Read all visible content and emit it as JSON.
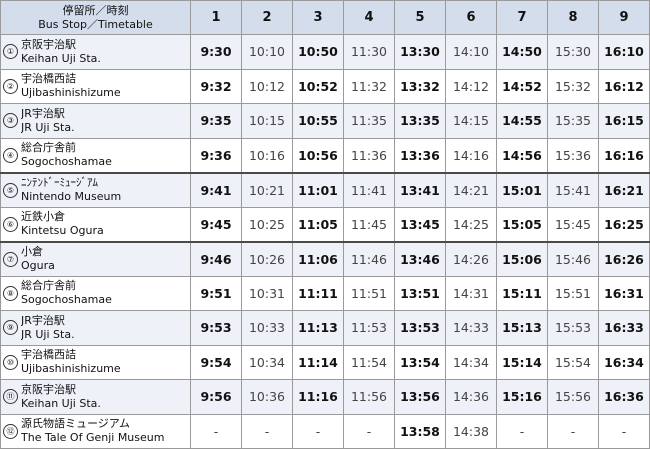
{
  "header": {
    "stop_label_ja": "停留所／時刻",
    "stop_label_en": "Bus Stop／Timetable",
    "trips": [
      "1",
      "2",
      "3",
      "4",
      "5",
      "6",
      "7",
      "8",
      "9"
    ]
  },
  "stops": [
    {
      "num": "①",
      "ja": "京阪宇治駅",
      "en": "Keihan Uji Sta.",
      "times": [
        "9:30",
        "10:10",
        "10:50",
        "11:30",
        "13:30",
        "14:10",
        "14:50",
        "15:30",
        "16:10"
      ]
    },
    {
      "num": "②",
      "ja": "宇治橋西詰",
      "en": "Ujibashinishizume",
      "times": [
        "9:32",
        "10:12",
        "10:52",
        "11:32",
        "13:32",
        "14:12",
        "14:52",
        "15:32",
        "16:12"
      ]
    },
    {
      "num": "③",
      "ja": "JR宇治駅",
      "en": "JR Uji Sta.",
      "times": [
        "9:35",
        "10:15",
        "10:55",
        "11:35",
        "13:35",
        "14:15",
        "14:55",
        "15:35",
        "16:15"
      ]
    },
    {
      "num": "④",
      "ja": "総合庁舎前",
      "en": "Sogochoshamae",
      "times": [
        "9:36",
        "10:16",
        "10:56",
        "11:36",
        "13:36",
        "14:16",
        "14:56",
        "15:36",
        "16:16"
      ]
    },
    {
      "num": "⑤",
      "ja": "ﾆﾝﾃﾝﾄﾞｰﾐｭｰｼﾞｱﾑ",
      "en": "Nintendo Museum",
      "times": [
        "9:41",
        "10:21",
        "11:01",
        "11:41",
        "13:41",
        "14:21",
        "15:01",
        "15:41",
        "16:21"
      ]
    },
    {
      "num": "⑥",
      "ja": "近鉄小倉",
      "en": "Kintetsu Ogura",
      "times": [
        "9:45",
        "10:25",
        "11:05",
        "11:45",
        "13:45",
        "14:25",
        "15:05",
        "15:45",
        "16:25"
      ]
    },
    {
      "num": "⑦",
      "ja": "小倉",
      "en": "Ogura",
      "times": [
        "9:46",
        "10:26",
        "11:06",
        "11:46",
        "13:46",
        "14:26",
        "15:06",
        "15:46",
        "16:26"
      ]
    },
    {
      "num": "⑧",
      "ja": "総合庁舎前",
      "en": "Sogochoshamae",
      "times": [
        "9:51",
        "10:31",
        "11:11",
        "11:51",
        "13:51",
        "14:31",
        "15:11",
        "15:51",
        "16:31"
      ]
    },
    {
      "num": "⑨",
      "ja": "JR宇治駅",
      "en": "JR Uji Sta.",
      "times": [
        "9:53",
        "10:33",
        "11:13",
        "11:53",
        "13:53",
        "14:33",
        "15:13",
        "15:53",
        "16:33"
      ]
    },
    {
      "num": "⑩",
      "ja": "宇治橋西詰",
      "en": "Ujibashinishizume",
      "times": [
        "9:54",
        "10:34",
        "11:14",
        "11:54",
        "13:54",
        "14:34",
        "15:14",
        "15:54",
        "16:34"
      ]
    },
    {
      "num": "⑪",
      "ja": "京阪宇治駅",
      "en": "Keihan Uji Sta.",
      "times": [
        "9:56",
        "10:36",
        "11:16",
        "11:56",
        "13:56",
        "14:36",
        "15:16",
        "15:56",
        "16:36"
      ]
    },
    {
      "num": "⑫",
      "ja": "源氏物語ミュージアム",
      "en": "The Tale Of Genji Museum",
      "times": [
        "-",
        "-",
        "-",
        "-",
        "13:58",
        "14:38",
        "-",
        "-",
        "-"
      ]
    }
  ]
}
